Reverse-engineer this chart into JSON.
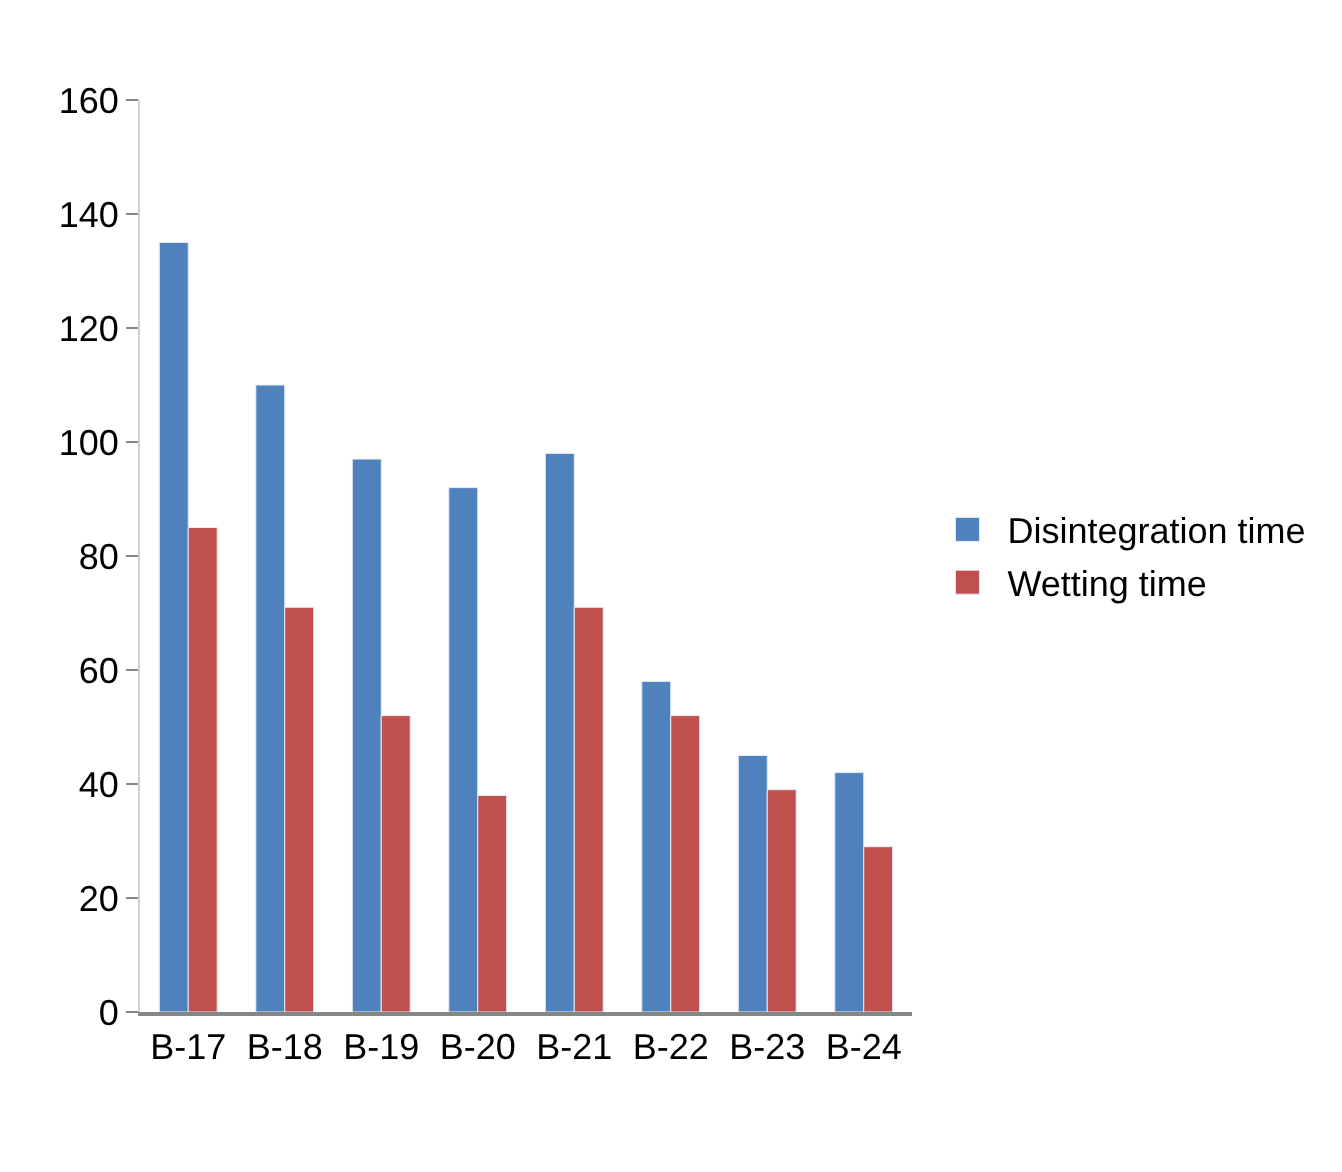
{
  "chart_data": {
    "type": "bar",
    "categories": [
      "B-17",
      "B-18",
      "B-19",
      "B-20",
      "B-21",
      "B-22",
      "B-23",
      "B-24"
    ],
    "series": [
      {
        "name": "Disintegration time",
        "color": "#4f81bd",
        "values": [
          135,
          110,
          97,
          92,
          98,
          58,
          45,
          42
        ]
      },
      {
        "name": "Wetting time",
        "color": "#c0504d",
        "values": [
          85,
          71,
          52,
          38,
          71,
          52,
          39,
          29
        ]
      }
    ],
    "ylim": [
      0,
      160
    ],
    "yticks": [
      0,
      20,
      40,
      60,
      80,
      100,
      120,
      140,
      160
    ],
    "grid": false,
    "legend": "right"
  }
}
